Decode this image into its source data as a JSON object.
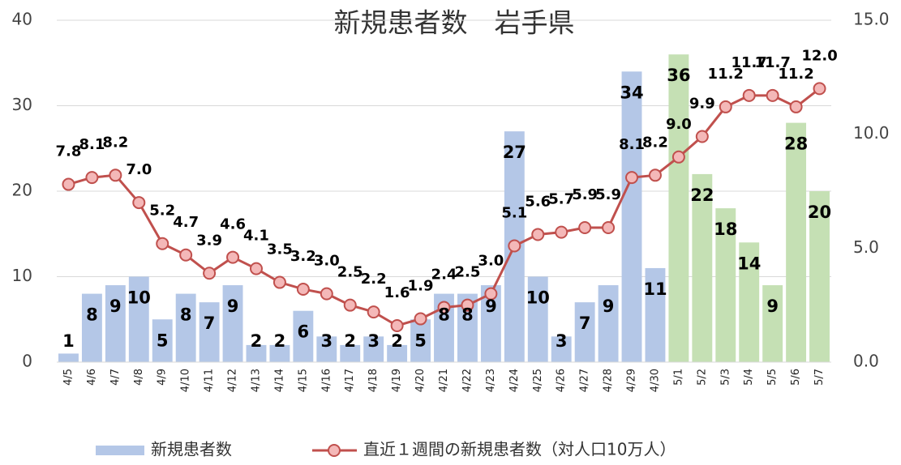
{
  "chart_data": {
    "type": "bar",
    "title": "新規患者数　岩手県",
    "categories": [
      "4/5",
      "4/6",
      "4/7",
      "4/8",
      "4/9",
      "4/10",
      "4/11",
      "4/12",
      "4/13",
      "4/14",
      "4/15",
      "4/16",
      "4/17",
      "4/18",
      "4/19",
      "4/20",
      "4/21",
      "4/22",
      "4/23",
      "4/24",
      "4/25",
      "4/26",
      "4/27",
      "4/28",
      "4/29",
      "4/30",
      "5/1",
      "5/2",
      "5/3",
      "5/4",
      "5/5",
      "5/6",
      "5/7"
    ],
    "series": [
      {
        "name": "新規患者数",
        "type": "bar",
        "color": "#b4c7e7",
        "colors": [
          "#b4c7e7",
          "#b4c7e7",
          "#b4c7e7",
          "#b4c7e7",
          "#b4c7e7",
          "#b4c7e7",
          "#b4c7e7",
          "#b4c7e7",
          "#b4c7e7",
          "#b4c7e7",
          "#b4c7e7",
          "#b4c7e7",
          "#b4c7e7",
          "#b4c7e7",
          "#b4c7e7",
          "#b4c7e7",
          "#b4c7e7",
          "#b4c7e7",
          "#b4c7e7",
          "#b4c7e7",
          "#b4c7e7",
          "#b4c7e7",
          "#b4c7e7",
          "#b4c7e7",
          "#b4c7e7",
          "#b4c7e7",
          "#c5e0b4",
          "#c5e0b4",
          "#c5e0b4",
          "#c5e0b4",
          "#c5e0b4",
          "#c5e0b4",
          "#c5e0b4"
        ],
        "values": [
          1,
          8,
          9,
          10,
          5,
          8,
          7,
          9,
          2,
          2,
          6,
          3,
          2,
          3,
          2,
          5,
          8,
          8,
          9,
          27,
          10,
          3,
          7,
          9,
          34,
          11,
          36,
          22,
          18,
          14,
          9,
          28,
          20
        ]
      },
      {
        "name": "直近１週間の新規患者数（対人口10万人）",
        "type": "line",
        "axis": "y2",
        "color": "#c0504d",
        "marker_fill": "#f4b8b8",
        "values": [
          7.8,
          8.1,
          8.2,
          7.0,
          5.2,
          4.7,
          3.9,
          4.6,
          4.1,
          3.5,
          3.2,
          3.0,
          2.5,
          2.2,
          1.6,
          1.9,
          2.4,
          2.5,
          3.0,
          5.1,
          5.6,
          5.7,
          5.9,
          5.9,
          8.1,
          8.2,
          9.0,
          9.9,
          11.2,
          11.7,
          11.7,
          11.2,
          12.0
        ],
        "value_labels": [
          "7.8",
          "8.1",
          "8.2",
          "7.0",
          "5.2",
          "4.7",
          "3.9",
          "4.6",
          "4.1",
          "3.5",
          "3.2",
          "3.0",
          "2.5",
          "2.2",
          "1.6",
          "1.9",
          "2.4",
          "2.5",
          "3.0",
          "5.1",
          "5.6",
          "5.7",
          "5.9",
          "5.9",
          "8.1",
          "8.2",
          "9.0",
          "9.9",
          "11.2",
          "11.7",
          "11.7",
          "11.2",
          "12.0"
        ]
      }
    ],
    "ylim": [
      0,
      40
    ],
    "yticks": [
      0,
      10,
      20,
      30,
      40
    ],
    "y2lim": [
      0,
      15
    ],
    "y2ticks": [
      {
        "value": 0,
        "label": "0.0"
      },
      {
        "value": 5,
        "label": "5.0"
      },
      {
        "value": 10,
        "label": "10.0"
      },
      {
        "value": 15,
        "label": "15.0"
      }
    ],
    "grid": true,
    "legend": "bottom"
  }
}
